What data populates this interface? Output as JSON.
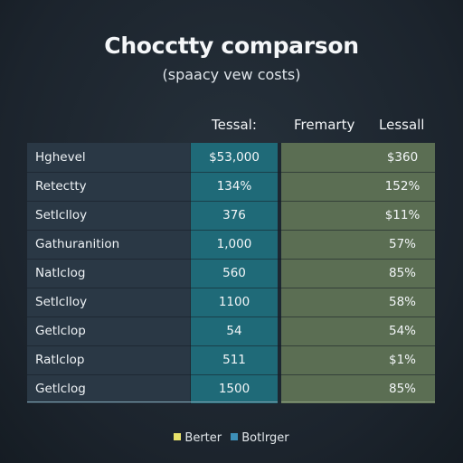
{
  "chart_data": {
    "type": "table",
    "title": "Chocctty comparson",
    "subtitle": "(spaacy vew costs)",
    "columns": [
      "Tessal:",
      "Fremarty",
      "Lessall"
    ],
    "rows": [
      {
        "label": "Hghevel",
        "values": [
          "$53,000",
          "",
          "$360"
        ]
      },
      {
        "label": "Retectty",
        "values": [
          "134%",
          "",
          "152%"
        ]
      },
      {
        "label": "Setlclloy",
        "values": [
          "376",
          "",
          "$11%"
        ]
      },
      {
        "label": "Gathuranition",
        "values": [
          "1,000",
          "",
          "57%"
        ]
      },
      {
        "label": "Natlclog",
        "values": [
          "560",
          "",
          "85%"
        ]
      },
      {
        "label": "Setlclloy",
        "values": [
          "1100",
          "",
          "58%"
        ]
      },
      {
        "label": "Getlclop",
        "values": [
          "54",
          "",
          "54%"
        ]
      },
      {
        "label": "Ratlclop",
        "values": [
          "511",
          "",
          "$1%"
        ]
      },
      {
        "label": "Getlclog",
        "values": [
          "1500",
          "",
          "85%"
        ]
      }
    ],
    "legend": [
      {
        "label": "Berter",
        "color": "#e8e26a"
      },
      {
        "label": "Botlrger",
        "color": "#3d8fb8"
      }
    ],
    "legend_placement": "bottom-center"
  },
  "colors": {
    "background": "#1d2731",
    "label_column": "#2a3845",
    "teal_column": "#1f6a78",
    "olive_column": "#5b6e53"
  }
}
